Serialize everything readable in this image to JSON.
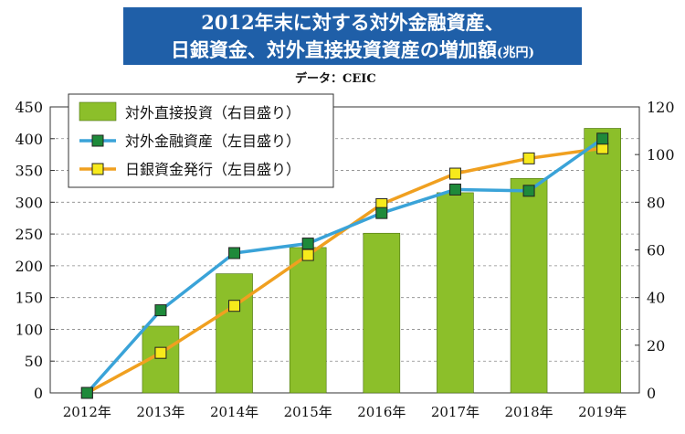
{
  "header": {
    "title_line1": "2012年末に対する対外金融資産、",
    "title_line2": "日銀資金、対外直接投資資産の増加額",
    "title_unit": "(兆円)",
    "source": "データ：CEIC"
  },
  "chart_data": {
    "type": "bar+line",
    "categories": [
      "2012年",
      "2013年",
      "2014年",
      "2015年",
      "2016年",
      "2017年",
      "2018年",
      "2019年"
    ],
    "left_axis": {
      "ticks": [
        0,
        50,
        100,
        150,
        200,
        250,
        300,
        350,
        400,
        450
      ],
      "ylim": [
        0,
        450
      ]
    },
    "right_axis": {
      "ticks": [
        0,
        20,
        40,
        60,
        80,
        100,
        120
      ],
      "ylim": [
        0,
        120
      ]
    },
    "series": [
      {
        "name": "対外直接投資（右目盛り）",
        "type": "bar",
        "axis": "right",
        "color": "#8cbf2a",
        "values": [
          0,
          28,
          50,
          61,
          67,
          84,
          90,
          111
        ]
      },
      {
        "name": "対外金融資産（左目盛り）",
        "type": "line",
        "axis": "left",
        "color": "#3aa3d8",
        "marker_color": "#1e8a3a",
        "values": [
          0,
          130,
          220,
          235,
          283,
          320,
          318,
          400
        ]
      },
      {
        "name": "日銀資金発行（左目盛り）",
        "type": "line",
        "axis": "left",
        "color": "#f0a020",
        "marker_color": "#f7ea1b",
        "values": [
          0,
          63,
          137,
          217,
          297,
          345,
          369,
          385
        ]
      }
    ],
    "legend_position": "top-left",
    "grid": true
  }
}
